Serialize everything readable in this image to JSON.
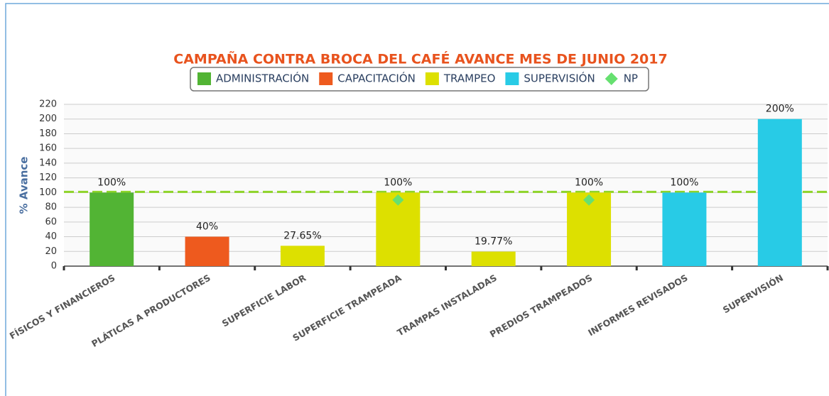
{
  "chart_data": {
    "type": "bar",
    "title": "CAMPAÑA CONTRA BROCA DEL CAFÉ AVANCE MES DE JUNIO 2017",
    "y_label": "% Avance",
    "categories": [
      "FÍSICOS Y FINANCIEROS",
      "PLÁTICAS A PRODUCTORES",
      "SUPERFICIE LABOR",
      "SUPERFICIE TRAMPEADA",
      "TRAMPAS INSTALADAS",
      "PREDIOS TRAMPEADOS",
      "INFORMES REVISADOS",
      "SUPERVISIÓN"
    ],
    "series": [
      {
        "name": "ADMINISTRACIÓN",
        "color": "#52b434",
        "values": [
          100,
          null,
          null,
          null,
          null,
          null,
          null,
          null
        ],
        "value_labels": [
          "100%",
          null,
          null,
          null,
          null,
          null,
          null,
          null
        ]
      },
      {
        "name": "CAPACITACIÓN",
        "color": "#ee5a1e",
        "values": [
          null,
          40,
          null,
          null,
          null,
          null,
          null,
          null
        ],
        "value_labels": [
          null,
          "40%",
          null,
          null,
          null,
          null,
          null,
          null
        ]
      },
      {
        "name": "TRAMPEO",
        "color": "#dde000",
        "values": [
          null,
          null,
          27.65,
          100,
          19.77,
          100,
          null,
          null
        ],
        "value_labels": [
          null,
          null,
          "27.65%",
          "100%",
          "19.77%",
          "100%",
          null,
          null
        ]
      },
      {
        "name": "SUPERVISIÓN",
        "color": "#28cbe6",
        "values": [
          null,
          null,
          null,
          null,
          null,
          null,
          100,
          200
        ],
        "value_labels": [
          null,
          null,
          null,
          null,
          null,
          null,
          "100%",
          "200%"
        ]
      },
      {
        "name": "NP",
        "color": "#66e070",
        "type": "scatter",
        "values": [
          null,
          null,
          null,
          90,
          null,
          90,
          null,
          null
        ]
      }
    ],
    "reference_line": {
      "value": 101,
      "color": "#8fd42a"
    },
    "ylim": [
      0,
      220
    ],
    "yticks": [
      0,
      20,
      40,
      60,
      80,
      100,
      120,
      140,
      160,
      180,
      200,
      220
    ],
    "grid": true
  }
}
